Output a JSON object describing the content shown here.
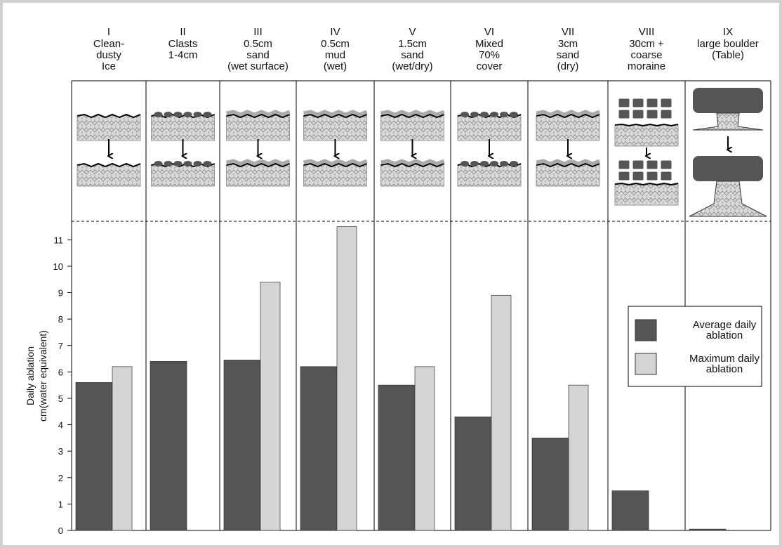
{
  "chart_data": {
    "type": "bar",
    "y_label": [
      "Daily ablation",
      "cm(water equivalent)"
    ],
    "numerals": [
      "I",
      "II",
      "III",
      "IV",
      "V",
      "VI",
      "VII",
      "VIII",
      "IX"
    ],
    "categories": [
      [
        "Clean-",
        "dusty",
        "Ice"
      ],
      [
        "Clasts",
        "1-4cm"
      ],
      [
        "0.5cm",
        "sand",
        "(wet surface)"
      ],
      [
        "0.5cm",
        "mud",
        "(wet)"
      ],
      [
        "1.5cm",
        "sand",
        "(wet/dry)"
      ],
      [
        "Mixed",
        "70%",
        "cover"
      ],
      [
        "3cm",
        "sand",
        "(dry)"
      ],
      [
        "30cm +",
        "coarse",
        "moraine"
      ],
      [
        "large boulder",
        "(Table)"
      ]
    ],
    "series": [
      {
        "name": "Average daily ablation",
        "color": "#555555",
        "values": [
          5.6,
          6.4,
          6.45,
          6.2,
          5.5,
          4.3,
          3.5,
          1.5,
          0.05
        ]
      },
      {
        "name": "Maximum daily ablation",
        "color": "#d4d4d4",
        "values": [
          6.2,
          null,
          9.4,
          11.5,
          6.2,
          8.9,
          5.5,
          null,
          null
        ]
      }
    ],
    "ylim": [
      0,
      11.7
    ],
    "yticks": [
      0,
      1,
      2,
      3,
      4,
      5,
      6,
      7,
      8,
      9,
      10,
      11
    ],
    "grid": false
  }
}
